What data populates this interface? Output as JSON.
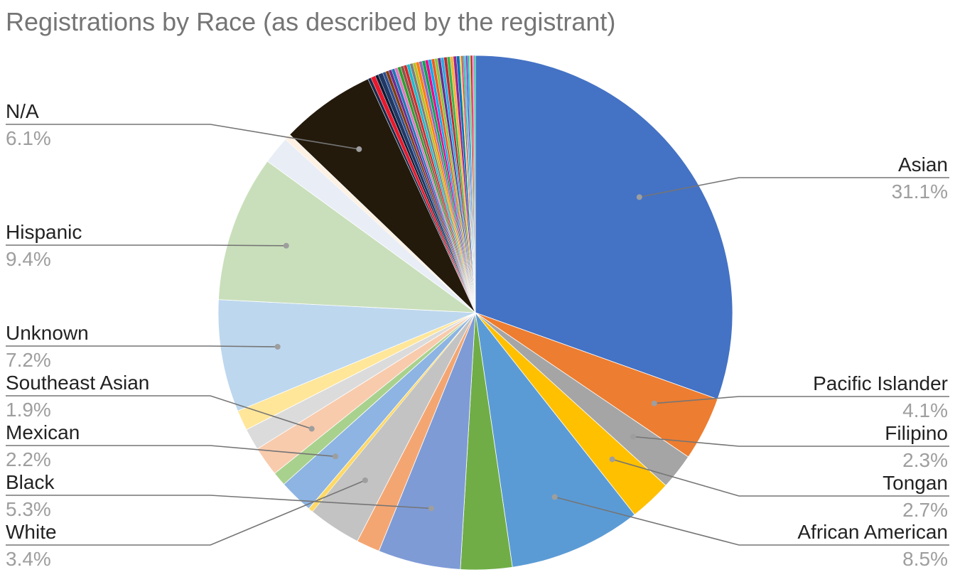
{
  "chart_data": {
    "type": "pie",
    "title": "Registrations by Race (as described by the registrant)",
    "slices": [
      {
        "label": "Asian",
        "value": 31.1,
        "color": "#4472c4",
        "labeled": true
      },
      {
        "label": "Pacific Islander",
        "value": 4.1,
        "color": "#ed7d31",
        "labeled": true
      },
      {
        "label": "Filipino",
        "value": 2.3,
        "color": "#a5a5a5",
        "labeled": true
      },
      {
        "label": "Tongan",
        "value": 2.7,
        "color": "#ffc000",
        "labeled": true
      },
      {
        "label": "African American",
        "value": 8.5,
        "color": "#5b9bd5",
        "labeled": true
      },
      {
        "label": "",
        "value": 3.3,
        "color": "#70ad47",
        "labeled": false
      },
      {
        "label": "Black",
        "value": 5.3,
        "color": "#7e9bd6",
        "labeled": true
      },
      {
        "label": "",
        "value": 1.5,
        "color": "#f4a672",
        "labeled": false
      },
      {
        "label": "White",
        "value": 3.4,
        "color": "#c3c3c3",
        "labeled": true
      },
      {
        "label": "",
        "value": 0.3,
        "color": "#ffd966",
        "labeled": false
      },
      {
        "label": "Mexican",
        "value": 2.2,
        "color": "#8db4e2",
        "labeled": true
      },
      {
        "label": "",
        "value": 0.9,
        "color": "#a9d18e",
        "labeled": false
      },
      {
        "label": "Southeast Asian",
        "value": 1.9,
        "color": "#f8cbad",
        "labeled": true
      },
      {
        "label": "",
        "value": 1.4,
        "color": "#dbdbdb",
        "labeled": false
      },
      {
        "label": "",
        "value": 1.3,
        "color": "#ffe699",
        "labeled": false
      },
      {
        "label": "Unknown",
        "value": 7.2,
        "color": "#bdd7ee",
        "labeled": true
      },
      {
        "label": "Hispanic",
        "value": 9.4,
        "color": "#c9dfbb",
        "labeled": true
      },
      {
        "label": "",
        "value": 1.8,
        "color": "#e8edf6",
        "labeled": false
      },
      {
        "label": "",
        "value": 0.4,
        "color": "#fdf1e4",
        "labeled": false
      },
      {
        "label": "N/A",
        "value": 6.1,
        "color": "#231a0c",
        "labeled": true
      },
      {
        "label": "",
        "value": 0.2,
        "color": "#1b2a4a",
        "labeled": false
      },
      {
        "label": "",
        "value": 0.3,
        "color": "#e8192c",
        "labeled": false
      },
      {
        "label": "",
        "value": 0.2,
        "color": "#0e1a33",
        "labeled": false
      },
      {
        "label": "",
        "value": 0.3,
        "color": "#203864",
        "labeled": false
      },
      {
        "label": "",
        "value": 0.2,
        "color": "#2f4f8f",
        "labeled": false
      },
      {
        "label": "",
        "value": 0.2,
        "color": "#843c0c",
        "labeled": false
      },
      {
        "label": "",
        "value": 0.2,
        "color": "#6b2c91",
        "labeled": false
      },
      {
        "label": "",
        "value": 0.2,
        "color": "#1f77b4",
        "labeled": false
      },
      {
        "label": "",
        "value": 0.2,
        "color": "#e377c2",
        "labeled": false
      },
      {
        "label": "",
        "value": 0.2,
        "color": "#2ca02c",
        "labeled": false
      },
      {
        "label": "",
        "value": 0.2,
        "color": "#8c564b",
        "labeled": false
      },
      {
        "label": "",
        "value": 0.2,
        "color": "#d62728",
        "labeled": false
      },
      {
        "label": "",
        "value": 0.2,
        "color": "#17becf",
        "labeled": false
      },
      {
        "label": "",
        "value": 0.2,
        "color": "#7f7f7f",
        "labeled": false
      },
      {
        "label": "",
        "value": 0.2,
        "color": "#bcbd22",
        "labeled": false
      },
      {
        "label": "",
        "value": 0.2,
        "color": "#ff7f0e",
        "labeled": false
      },
      {
        "label": "",
        "value": 0.2,
        "color": "#9467bd",
        "labeled": false
      },
      {
        "label": "",
        "value": 0.2,
        "color": "#00a651",
        "labeled": false
      },
      {
        "label": "",
        "value": 0.2,
        "color": "#ec008c",
        "labeled": false
      },
      {
        "label": "",
        "value": 0.2,
        "color": "#00aeef",
        "labeled": false
      },
      {
        "label": "",
        "value": 0.2,
        "color": "#f15a24",
        "labeled": false
      },
      {
        "label": "",
        "value": 0.2,
        "color": "#8dc63f",
        "labeled": false
      },
      {
        "label": "",
        "value": 0.2,
        "color": "#662d91",
        "labeled": false
      },
      {
        "label": "",
        "value": 0.2,
        "color": "#29abe2",
        "labeled": false
      },
      {
        "label": "",
        "value": 0.2,
        "color": "#c1272d",
        "labeled": false
      },
      {
        "label": "",
        "value": 0.2,
        "color": "#39b54a",
        "labeled": false
      },
      {
        "label": "",
        "value": 0.2,
        "color": "#fbb03b",
        "labeled": false
      },
      {
        "label": "",
        "value": 0.2,
        "color": "#93278f",
        "labeled": false
      },
      {
        "label": "",
        "value": 0.2,
        "color": "#0071bc",
        "labeled": false
      },
      {
        "label": "",
        "value": 0.1,
        "color": "#d9e021",
        "labeled": false
      },
      {
        "label": "",
        "value": 0.1,
        "color": "#ed1e79",
        "labeled": false
      },
      {
        "label": "",
        "value": 0.1,
        "color": "#22b573",
        "labeled": false
      },
      {
        "label": "",
        "value": 0.1,
        "color": "#3fa9f5",
        "labeled": false
      },
      {
        "label": "",
        "value": 0.1,
        "color": "#7030a0",
        "labeled": false
      },
      {
        "label": "",
        "value": 0.1,
        "color": "#00b0f0",
        "labeled": false
      },
      {
        "label": "",
        "value": 0.1,
        "color": "#92d050",
        "labeled": false
      },
      {
        "label": "",
        "value": 0.1,
        "color": "#c00000",
        "labeled": false
      },
      {
        "label": "",
        "value": 0.1,
        "color": "#ff66cc",
        "labeled": false
      },
      {
        "label": "",
        "value": 0.1,
        "color": "#33cc99",
        "labeled": false
      }
    ]
  }
}
